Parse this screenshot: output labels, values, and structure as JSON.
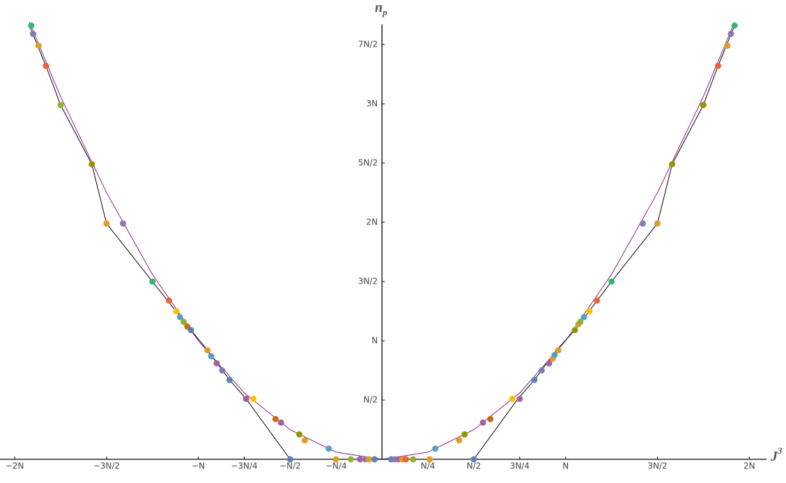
{
  "chart_data": {
    "type": "scatter",
    "x_label": "J",
    "x_label_sup": "3",
    "y_label": "n",
    "y_label_sub": "p",
    "xlim": [
      -2.08,
      2.2
    ],
    "ylim": [
      0,
      3.67
    ],
    "xticks": [
      {
        "value": -2,
        "label": "−2N"
      },
      {
        "value": -1.5,
        "label": "−3N/2"
      },
      {
        "value": -1,
        "label": "−N"
      },
      {
        "value": -0.75,
        "label": "−3N/4"
      },
      {
        "value": -0.5,
        "label": "−N/2"
      },
      {
        "value": -0.25,
        "label": "−N/4"
      },
      {
        "value": 0.25,
        "label": "N/4"
      },
      {
        "value": 0.5,
        "label": "N/2"
      },
      {
        "value": 0.75,
        "label": "3N/4"
      },
      {
        "value": 1,
        "label": "N"
      },
      {
        "value": 1.5,
        "label": "3N/2"
      },
      {
        "value": 2,
        "label": "2N"
      }
    ],
    "yticks": [
      {
        "value": 0.5,
        "label": "N/2"
      },
      {
        "value": 1,
        "label": "N"
      },
      {
        "value": 1.5,
        "label": "3N/2"
      },
      {
        "value": 2,
        "label": "2N"
      },
      {
        "value": 2.5,
        "label": "5N/2"
      },
      {
        "value": 3,
        "label": "3N"
      },
      {
        "value": 3.5,
        "label": "7N/2"
      }
    ],
    "lines": [
      {
        "color": "#8b1a8b",
        "x": [
          -1.92,
          -1.75,
          -1.5,
          -1.25,
          -1,
          -0.75,
          -0.5,
          -0.25,
          0,
          0.25,
          0.5,
          0.75,
          1,
          1.25,
          1.5,
          1.75,
          1.92
        ],
        "y": [
          3.69,
          3.06,
          2.25,
          1.56,
          1,
          0.56,
          0.25,
          0.06,
          0,
          0.06,
          0.25,
          0.56,
          1,
          1.56,
          2.25,
          3.06,
          3.69
        ]
      },
      {
        "color": "#000000",
        "x": [
          -1.92,
          -1.83,
          -1.75,
          -1.58,
          -1.5,
          -1.25,
          -1.04,
          -0.95,
          -0.83,
          -0.74,
          -0.5,
          0.5,
          0.74,
          0.83,
          0.95,
          1.05,
          1.25,
          1.5,
          1.58,
          1.75,
          1.83,
          1.92
        ],
        "y": [
          3.66,
          3.32,
          2.99,
          2.49,
          1.99,
          1.5,
          1.09,
          0.92,
          0.67,
          0.51,
          0,
          0,
          0.51,
          0.67,
          0.92,
          1.09,
          1.5,
          1.99,
          2.49,
          2.99,
          3.32,
          3.66
        ]
      }
    ],
    "points": {
      "x": [
        0.05,
        0.07,
        0.09,
        0.11,
        0.13,
        0.17,
        0.26,
        0.29,
        0.42,
        0.45,
        0.55,
        0.59,
        0.5,
        0.71,
        0.75,
        0.83,
        0.87,
        0.91,
        0.93,
        0.94,
        0.96,
        1.05,
        1.07,
        1.08,
        1.1,
        1.13,
        1.17,
        1.25,
        1.42,
        1.5,
        1.58,
        1.75,
        1.83,
        1.88,
        1.9,
        1.92,
        -1.91,
        -1.9,
        -1.87,
        -1.83,
        -1.75,
        -1.58,
        -1.5,
        -1.41,
        -1.25,
        -1.16,
        -1.12,
        -1.1,
        -1.08,
        -1.06,
        -1.04,
        -0.95,
        -0.93,
        -0.9,
        -0.87,
        -0.83,
        -0.74,
        -0.7,
        -0.58,
        -0.55,
        -0.45,
        -0.42,
        -0.29,
        -0.5,
        -0.25,
        -0.17,
        -0.12,
        -0.09,
        -0.07,
        -0.04
      ],
      "y": [
        0,
        0,
        0,
        0,
        0,
        0,
        0,
        0.09,
        0.16,
        0.21,
        0.31,
        0.34,
        0,
        0.51,
        0.51,
        0.67,
        0.75,
        0.81,
        0.85,
        0.88,
        0.92,
        1.09,
        1.14,
        1.16,
        1.2,
        1.25,
        1.34,
        1.5,
        1.99,
        1.99,
        2.49,
        2.99,
        3.32,
        3.49,
        3.59,
        3.66,
        3.66,
        3.59,
        3.49,
        3.32,
        2.99,
        2.49,
        1.99,
        1.99,
        1.5,
        1.34,
        1.25,
        1.2,
        1.16,
        1.12,
        1.09,
        0.92,
        0.87,
        0.81,
        0.75,
        0.67,
        0.51,
        0.51,
        0.34,
        0.31,
        0.21,
        0.16,
        0.09,
        0,
        0,
        0,
        0,
        0,
        0,
        0
      ],
      "colors": [
        "#5e81b5",
        "#8778b3",
        "#a5609d",
        "#e19c24",
        "#eb6235",
        "#8fb032",
        "#e19c24",
        "#5d9ec7",
        "#e19c24",
        "#929600",
        "#a5609d",
        "#c56e1a",
        "#5e81b5",
        "#ffbf00",
        "#a5609d",
        "#5e81b5",
        "#8778b3",
        "#a5609d",
        "#e19c24",
        "#5d9ec7",
        "#e19c24",
        "#929600",
        "#e19c24",
        "#8fb032",
        "#5d9ec7",
        "#ffbf00",
        "#eb6235",
        "#3cb371",
        "#8778b3",
        "#e19c24",
        "#929600",
        "#929600",
        "#eb6235",
        "#e19c24",
        "#8778b3",
        "#3cb371",
        "#3cb371",
        "#8778b3",
        "#e19c24",
        "#eb6235",
        "#8fb032",
        "#929600",
        "#e19c24",
        "#8778b3",
        "#3cb371",
        "#eb6235",
        "#ffbf00",
        "#5d9ec7",
        "#8fb032",
        "#c56e1a",
        "#5e81b5",
        "#e19c24",
        "#5d9ec7",
        "#a5609d",
        "#8778b3",
        "#5e81b5",
        "#a5609d",
        "#ffbf00",
        "#c56e1a",
        "#a5609d",
        "#929600",
        "#e19c24",
        "#5d9ec7",
        "#5e81b5",
        "#e19c24",
        "#8fb032",
        "#a5609d",
        "#8778b3",
        "#e19c24",
        "#5e81b5"
      ]
    }
  }
}
